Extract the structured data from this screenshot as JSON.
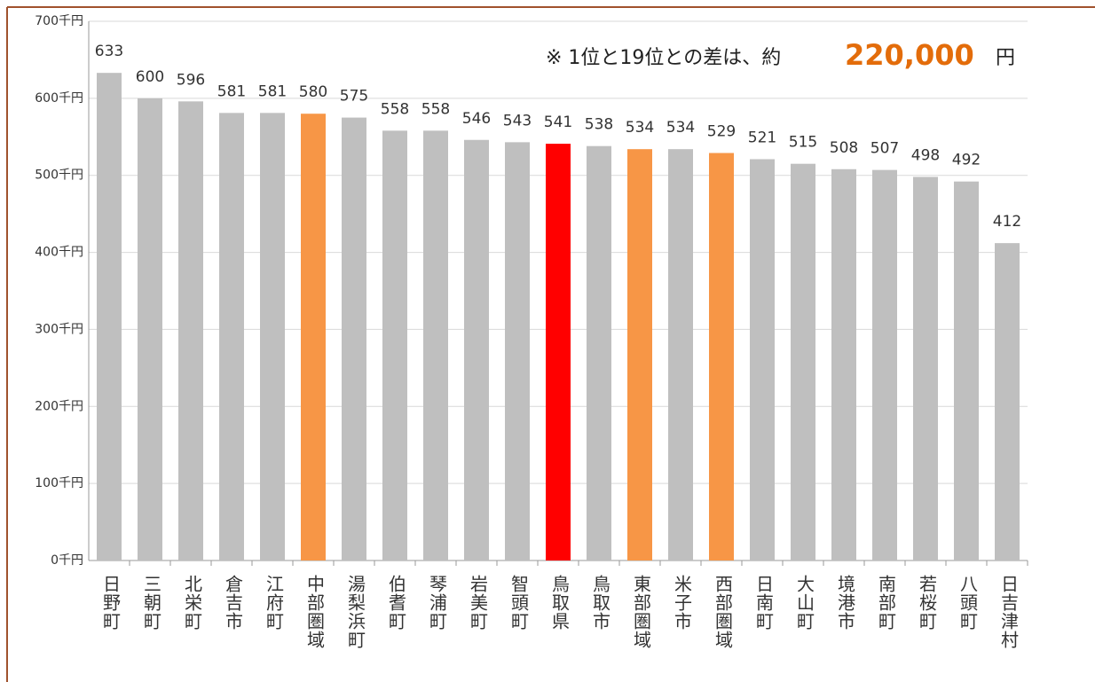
{
  "chart_data": {
    "type": "bar",
    "annotation": {
      "prefix": "※ 1位と19位との差は、約",
      "amount": "220,000",
      "suffix": "円"
    },
    "categories": [
      "日野町",
      "三朝町",
      "北栄町",
      "倉吉市",
      "江府町",
      "中部圏域",
      "湯梨浜町",
      "伯耆町",
      "琴浦町",
      "岩美町",
      "智頭町",
      "鳥取県",
      "鳥取市",
      "東部圏域",
      "米子市",
      "西部圏域",
      "日南町",
      "大山町",
      "境港市",
      "南部町",
      "若桜町",
      "八頭町",
      "日吉津村"
    ],
    "values": [
      633,
      600,
      596,
      581,
      581,
      580,
      575,
      558,
      558,
      546,
      543,
      541,
      538,
      534,
      534,
      529,
      521,
      515,
      508,
      507,
      498,
      492,
      412
    ],
    "colors": [
      "#bfbfbf",
      "#bfbfbf",
      "#bfbfbf",
      "#bfbfbf",
      "#bfbfbf",
      "#f79646",
      "#bfbfbf",
      "#bfbfbf",
      "#bfbfbf",
      "#bfbfbf",
      "#bfbfbf",
      "#ff0000",
      "#bfbfbf",
      "#f79646",
      "#bfbfbf",
      "#f79646",
      "#bfbfbf",
      "#bfbfbf",
      "#bfbfbf",
      "#bfbfbf",
      "#bfbfbf",
      "#bfbfbf",
      "#bfbfbf"
    ],
    "ylim": [
      0,
      700
    ],
    "yticks": [
      {
        "value": 0,
        "label": "0千円"
      },
      {
        "value": 100,
        "label": "100千円"
      },
      {
        "value": 200,
        "label": "200千円"
      },
      {
        "value": 300,
        "label": "300千円"
      },
      {
        "value": 400,
        "label": "400千円"
      },
      {
        "value": 500,
        "label": "500千円"
      },
      {
        "value": 600,
        "label": "600千円"
      },
      {
        "value": 700,
        "label": "700千円"
      }
    ],
    "grid": true
  }
}
